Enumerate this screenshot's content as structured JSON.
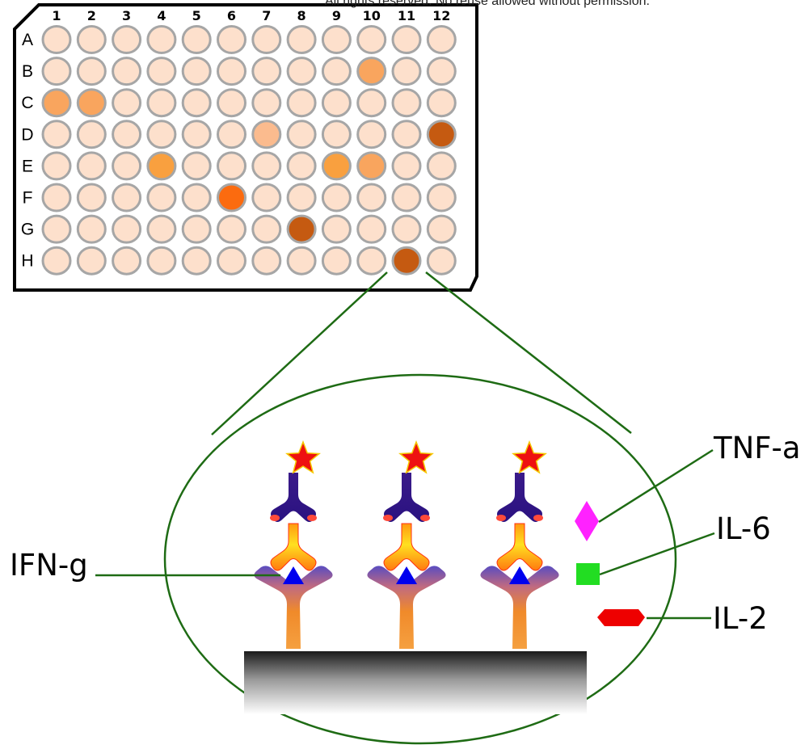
{
  "copyright": "All rights reserved. No reuse allowed without permission.",
  "plate": {
    "columns": [
      "1",
      "2",
      "3",
      "4",
      "5",
      "6",
      "7",
      "8",
      "9",
      "10",
      "11",
      "12"
    ],
    "rows": [
      "A",
      "B",
      "C",
      "D",
      "E",
      "F",
      "G",
      "H"
    ],
    "well_color_default": "#fde0cc",
    "highlighted_wells": [
      {
        "row": "B",
        "col": 10,
        "color": "#f9a55e"
      },
      {
        "row": "C",
        "col": 1,
        "color": "#f9a55e"
      },
      {
        "row": "C",
        "col": 2,
        "color": "#f9a55e"
      },
      {
        "row": "D",
        "col": 7,
        "color": "#fbbb8e"
      },
      {
        "row": "D",
        "col": 12,
        "color": "#c55a11"
      },
      {
        "row": "E",
        "col": 4,
        "color": "#f9a03f"
      },
      {
        "row": "E",
        "col": 9,
        "color": "#f9a03f"
      },
      {
        "row": "E",
        "col": 10,
        "color": "#f9a55e"
      },
      {
        "row": "F",
        "col": 6,
        "color": "#fb6b0f"
      },
      {
        "row": "G",
        "col": 8,
        "color": "#c55a11"
      },
      {
        "row": "H",
        "col": 11,
        "color": "#c55a11"
      }
    ]
  },
  "labels": {
    "tnf": "TNF-a",
    "il6": "IL-6",
    "il2": "IL-2",
    "ifng": "IFN-g"
  },
  "colors": {
    "line": "#1e6b14",
    "tnf_marker": "#ff22ff",
    "il6_marker": "#22dd22",
    "il2_marker": "#ee0000",
    "ifng_marker": "#0000ee",
    "star": "#ee1111"
  }
}
